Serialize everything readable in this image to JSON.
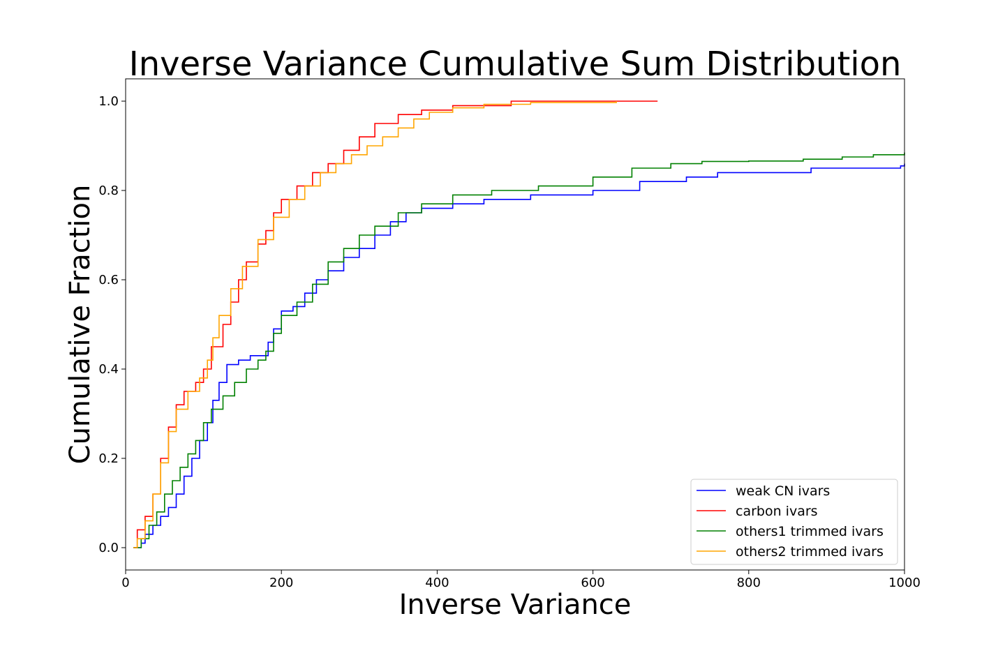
{
  "chart_data": {
    "type": "line",
    "title": "Inverse Variance Cumulative Sum Distribution",
    "xlabel": "Inverse Variance",
    "ylabel": "Cumulative Fraction",
    "xlim": [
      0,
      1000
    ],
    "ylim": [
      -0.05,
      1.05
    ],
    "xticks": [
      "0",
      "200",
      "400",
      "600",
      "800",
      "1000"
    ],
    "yticks": [
      "0.0",
      "0.2",
      "0.4",
      "0.6",
      "0.8",
      "1.0"
    ],
    "grid": false,
    "legend_position": "lower-right",
    "series": [
      {
        "name": "weak CN ivars",
        "color": "#0000ff",
        "points": [
          [
            10,
            0
          ],
          [
            20,
            0.01
          ],
          [
            25,
            0.03
          ],
          [
            35,
            0.05
          ],
          [
            45,
            0.07
          ],
          [
            55,
            0.09
          ],
          [
            65,
            0.12
          ],
          [
            75,
            0.16
          ],
          [
            85,
            0.2
          ],
          [
            95,
            0.24
          ],
          [
            105,
            0.28
          ],
          [
            112,
            0.33
          ],
          [
            120,
            0.37
          ],
          [
            130,
            0.41
          ],
          [
            145,
            0.42
          ],
          [
            160,
            0.43
          ],
          [
            175,
            0.43
          ],
          [
            183,
            0.46
          ],
          [
            190,
            0.49
          ],
          [
            200,
            0.53
          ],
          [
            215,
            0.54
          ],
          [
            230,
            0.57
          ],
          [
            245,
            0.6
          ],
          [
            260,
            0.62
          ],
          [
            280,
            0.65
          ],
          [
            300,
            0.67
          ],
          [
            320,
            0.7
          ],
          [
            340,
            0.73
          ],
          [
            360,
            0.75
          ],
          [
            380,
            0.76
          ],
          [
            420,
            0.77
          ],
          [
            460,
            0.78
          ],
          [
            520,
            0.79
          ],
          [
            600,
            0.8
          ],
          [
            660,
            0.82
          ],
          [
            720,
            0.83
          ],
          [
            760,
            0.84
          ],
          [
            880,
            0.85
          ],
          [
            995,
            0.855
          ],
          [
            1000,
            0.86
          ]
        ]
      },
      {
        "name": "carbon ivars",
        "color": "#ff0000",
        "points": [
          [
            10,
            0
          ],
          [
            15,
            0.04
          ],
          [
            25,
            0.07
          ],
          [
            35,
            0.12
          ],
          [
            45,
            0.2
          ],
          [
            55,
            0.27
          ],
          [
            65,
            0.32
          ],
          [
            75,
            0.35
          ],
          [
            90,
            0.37
          ],
          [
            100,
            0.4
          ],
          [
            110,
            0.45
          ],
          [
            125,
            0.5
          ],
          [
            135,
            0.55
          ],
          [
            145,
            0.6
          ],
          [
            155,
            0.64
          ],
          [
            170,
            0.68
          ],
          [
            180,
            0.71
          ],
          [
            190,
            0.75
          ],
          [
            200,
            0.78
          ],
          [
            220,
            0.81
          ],
          [
            240,
            0.84
          ],
          [
            260,
            0.86
          ],
          [
            280,
            0.89
          ],
          [
            300,
            0.92
          ],
          [
            320,
            0.95
          ],
          [
            350,
            0.97
          ],
          [
            380,
            0.98
          ],
          [
            420,
            0.99
          ],
          [
            495,
            1.0
          ],
          [
            683,
            1.0
          ]
        ]
      },
      {
        "name": "others1 trimmed ivars",
        "color": "#008000",
        "points": [
          [
            10,
            0
          ],
          [
            20,
            0.02
          ],
          [
            30,
            0.05
          ],
          [
            40,
            0.08
          ],
          [
            50,
            0.12
          ],
          [
            60,
            0.15
          ],
          [
            70,
            0.18
          ],
          [
            80,
            0.21
          ],
          [
            90,
            0.24
          ],
          [
            100,
            0.28
          ],
          [
            110,
            0.31
          ],
          [
            125,
            0.34
          ],
          [
            140,
            0.37
          ],
          [
            155,
            0.4
          ],
          [
            170,
            0.42
          ],
          [
            180,
            0.44
          ],
          [
            190,
            0.48
          ],
          [
            200,
            0.52
          ],
          [
            220,
            0.55
          ],
          [
            240,
            0.59
          ],
          [
            260,
            0.64
          ],
          [
            280,
            0.67
          ],
          [
            300,
            0.7
          ],
          [
            320,
            0.72
          ],
          [
            350,
            0.75
          ],
          [
            380,
            0.77
          ],
          [
            420,
            0.79
          ],
          [
            470,
            0.8
          ],
          [
            530,
            0.81
          ],
          [
            600,
            0.83
          ],
          [
            650,
            0.85
          ],
          [
            700,
            0.86
          ],
          [
            740,
            0.865
          ],
          [
            800,
            0.866
          ],
          [
            870,
            0.87
          ],
          [
            920,
            0.875
          ],
          [
            960,
            0.88
          ],
          [
            1000,
            0.885
          ]
        ]
      },
      {
        "name": "others2 trimmed ivars",
        "color": "#ffa500",
        "points": [
          [
            10,
            0
          ],
          [
            15,
            0.02
          ],
          [
            25,
            0.06
          ],
          [
            35,
            0.12
          ],
          [
            45,
            0.19
          ],
          [
            55,
            0.26
          ],
          [
            65,
            0.31
          ],
          [
            80,
            0.35
          ],
          [
            95,
            0.38
          ],
          [
            105,
            0.42
          ],
          [
            112,
            0.47
          ],
          [
            120,
            0.52
          ],
          [
            135,
            0.58
          ],
          [
            150,
            0.63
          ],
          [
            170,
            0.69
          ],
          [
            190,
            0.74
          ],
          [
            210,
            0.78
          ],
          [
            230,
            0.81
          ],
          [
            250,
            0.84
          ],
          [
            270,
            0.86
          ],
          [
            290,
            0.88
          ],
          [
            310,
            0.9
          ],
          [
            330,
            0.92
          ],
          [
            350,
            0.94
          ],
          [
            370,
            0.96
          ],
          [
            390,
            0.975
          ],
          [
            420,
            0.985
          ],
          [
            460,
            0.993
          ],
          [
            520,
            0.997
          ],
          [
            630,
            1.0
          ]
        ]
      }
    ]
  }
}
